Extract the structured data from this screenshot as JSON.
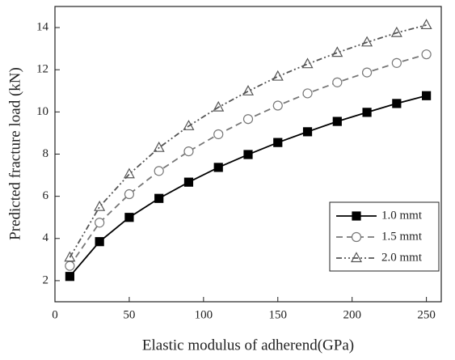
{
  "chart_data": {
    "type": "line",
    "x_label": "Elastic modulus of adherend(GPa)",
    "y_label": "Predicted fracture load (kN)",
    "x": [
      10,
      30,
      50,
      70,
      90,
      110,
      130,
      150,
      170,
      190,
      210,
      230,
      250
    ],
    "series": [
      {
        "name": "1.0 mmt",
        "color": "#000000",
        "marker": "square-filled",
        "dash": "solid",
        "values": [
          2.2,
          3.85,
          5.0,
          5.9,
          6.67,
          7.37,
          7.98,
          8.55,
          9.06,
          9.55,
          9.98,
          10.4,
          10.77
        ]
      },
      {
        "name": "1.5 mmt",
        "color": "#777777",
        "marker": "circle-open",
        "dash": "dashed",
        "values": [
          2.7,
          4.75,
          6.1,
          7.2,
          8.13,
          8.94,
          9.66,
          10.3,
          10.88,
          11.4,
          11.87,
          12.32,
          12.73
        ]
      },
      {
        "name": "2.0 mmt",
        "color": "#555555",
        "marker": "triangle-open",
        "dash": "dash-dot-dot",
        "values": [
          3.1,
          5.5,
          7.05,
          8.3,
          9.33,
          10.22,
          10.98,
          11.68,
          12.27,
          12.81,
          13.3,
          13.75,
          14.12
        ]
      }
    ],
    "xlim": [
      0,
      260
    ],
    "xticks": [
      0,
      50,
      100,
      150,
      200,
      250
    ],
    "ylim": [
      1,
      15
    ],
    "yticks": [
      2,
      4,
      6,
      8,
      10,
      12,
      14
    ],
    "legend": "lower-right",
    "grid": false
  }
}
